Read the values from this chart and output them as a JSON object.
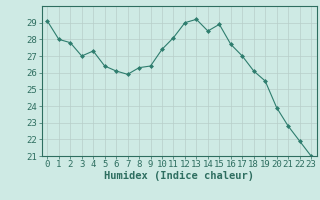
{
  "x": [
    0,
    1,
    2,
    3,
    4,
    5,
    6,
    7,
    8,
    9,
    10,
    11,
    12,
    13,
    14,
    15,
    16,
    17,
    18,
    19,
    20,
    21,
    22,
    23
  ],
  "y": [
    29.1,
    28.0,
    27.8,
    27.0,
    27.3,
    26.4,
    26.1,
    25.9,
    26.3,
    26.4,
    27.4,
    28.1,
    29.0,
    29.2,
    28.5,
    28.9,
    27.7,
    27.0,
    26.1,
    25.5,
    23.9,
    22.8,
    21.9,
    21.0
  ],
  "line_color": "#2e7d6e",
  "marker": "D",
  "marker_size": 2.0,
  "bg_color": "#ceeae4",
  "grid_color": "#b8cec9",
  "xlabel": "Humidex (Indice chaleur)",
  "ylim": [
    21,
    30
  ],
  "xlim": [
    -0.5,
    23.5
  ],
  "yticks": [
    21,
    22,
    23,
    24,
    25,
    26,
    27,
    28,
    29
  ],
  "xticks": [
    0,
    1,
    2,
    3,
    4,
    5,
    6,
    7,
    8,
    9,
    10,
    11,
    12,
    13,
    14,
    15,
    16,
    17,
    18,
    19,
    20,
    21,
    22,
    23
  ],
  "font_color": "#2e6e60",
  "tick_font_size": 6.5,
  "label_font_size": 7.5,
  "spine_color": "#2e6e60"
}
